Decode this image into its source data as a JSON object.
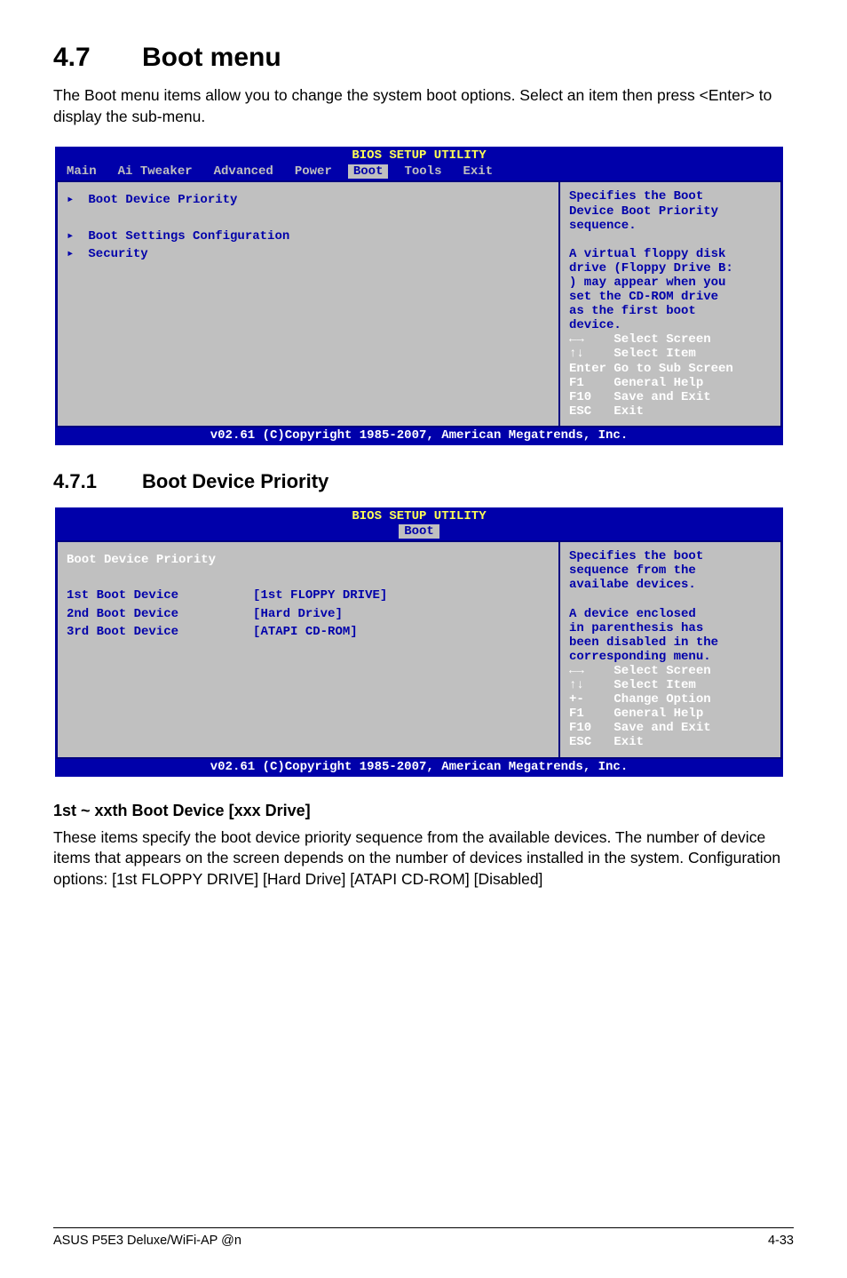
{
  "page": {
    "h1_num": "4.7",
    "h1_title": "Boot menu",
    "intro": "The Boot menu items allow you to change the system boot options. Select an item then press <Enter> to display the sub-menu.",
    "h2_num": "4.7.1",
    "h2_title": "Boot Device Priority",
    "h3": "1st ~ xxth Boot Device [xxx Drive]",
    "para2": "These items specify the boot device priority sequence from the available devices. The number of device items that appears on the screen depends on the number of devices installed in the system. Configuration options: [1st FLOPPY DRIVE] [Hard Drive] [ATAPI CD-ROM] [Disabled]",
    "footer_left": "ASUS P5E3 Deluxe/WiFi-AP @n",
    "footer_right": "4-33"
  },
  "bios1": {
    "title": "BIOS SETUP UTILITY",
    "tabs": {
      "items": [
        "Main",
        "Ai Tweaker",
        "Advanced",
        "Power",
        "Boot",
        "Tools",
        "Exit"
      ],
      "selected": "Boot"
    },
    "left_rows": [
      {
        "arrow": "▸",
        "label": "Boot Device Priority"
      },
      {
        "spacer": true
      },
      {
        "arrow": "▸",
        "label": "Boot Settings Configuration"
      },
      {
        "arrow": "▸",
        "label": "Security"
      }
    ],
    "help_top_lines": [
      "Specifies the Boot",
      "Device Boot Priority",
      "sequence.",
      "",
      "A virtual floppy disk",
      "drive (Floppy Drive B:",
      ") may appear when you",
      "set the CD-ROM drive",
      "as the first boot",
      "device."
    ],
    "keys_lines": [
      "←→    Select Screen",
      "↑↓    Select Item",
      "Enter Go to Sub Screen",
      "F1    General Help",
      "F10   Save and Exit",
      "ESC   Exit"
    ],
    "footer": "v02.61 (C)Copyright 1985-2007, American Megatrends, Inc."
  },
  "bios2": {
    "title": "BIOS SETUP UTILITY",
    "subtab": "Boot",
    "header_white": "Boot Device Priority",
    "rows": [
      {
        "label": "1st Boot Device",
        "value": "[1st FLOPPY DRIVE]"
      },
      {
        "label": "2nd Boot Device",
        "value": "[Hard Drive]"
      },
      {
        "label": "3rd Boot Device",
        "value": "[ATAPI CD-ROM]"
      }
    ],
    "help_top_lines": [
      "Specifies the boot",
      "sequence from the",
      "availabe devices.",
      "",
      "A device enclosed",
      "in parenthesis has",
      "been disabled in the",
      "corresponding menu."
    ],
    "keys_lines": [
      "←→    Select Screen",
      "↑↓    Select Item",
      "+-    Change Option",
      "F1    General Help",
      "F10   Save and Exit",
      "ESC   Exit"
    ],
    "footer": "v02.61 (C)Copyright 1985-2007, American Megatrends, Inc."
  },
  "colors": {
    "bios_blue": "#0000aa",
    "bios_gray": "#c0c0c0",
    "bios_yellow": "#ffff55",
    "bios_navy_border": "#000080",
    "white": "#ffffff",
    "black": "#000000"
  }
}
